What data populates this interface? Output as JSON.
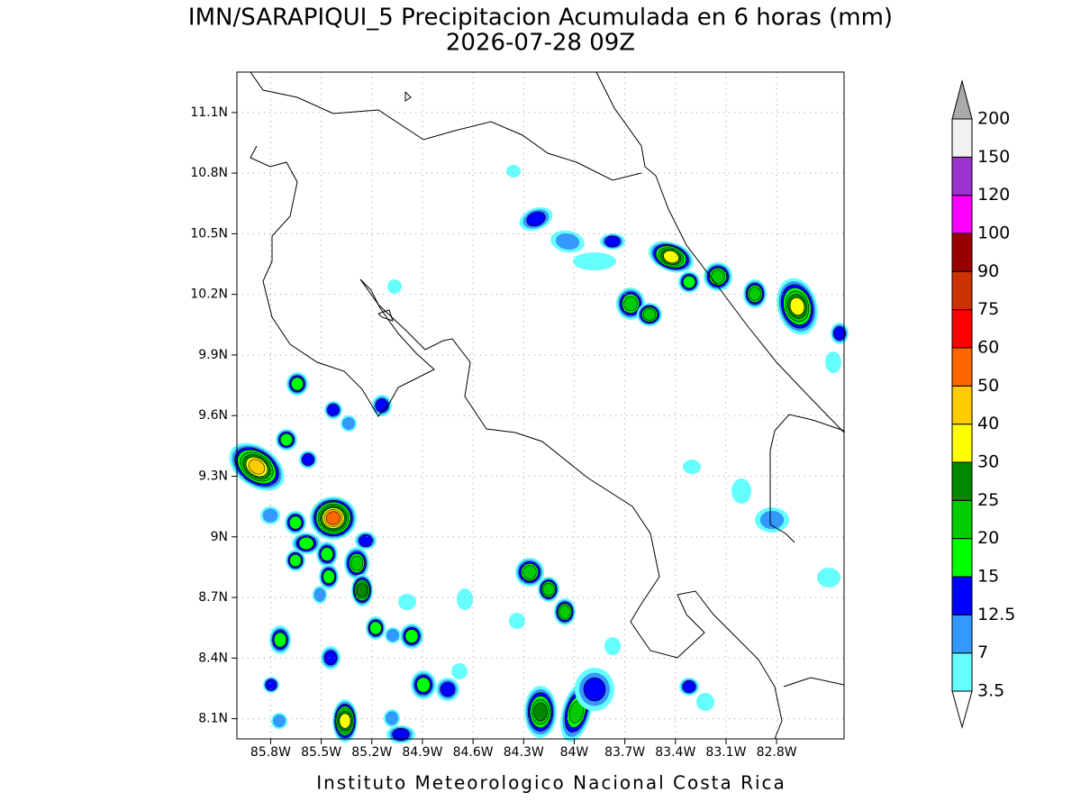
{
  "chart_data": {
    "type": "map",
    "title": "IMN/SARAPIQUI_5 Precipitacion Acumulada en 6 horas (mm)",
    "subtitle": "2026-07-28 09Z",
    "footer": "Instituto Meteorologico Nacional Costa Rica",
    "xlim": [
      -86.0,
      -82.4
    ],
    "ylim": [
      8.0,
      11.3
    ],
    "xticks": [
      {
        "value": -85.8,
        "label": "85.8W"
      },
      {
        "value": -85.5,
        "label": "85.5W"
      },
      {
        "value": -85.2,
        "label": "85.2W"
      },
      {
        "value": -84.9,
        "label": "84.9W"
      },
      {
        "value": -84.6,
        "label": "84.6W"
      },
      {
        "value": -84.3,
        "label": "84.3W"
      },
      {
        "value": -84.0,
        "label": "84W"
      },
      {
        "value": -83.7,
        "label": "83.7W"
      },
      {
        "value": -83.4,
        "label": "83.4W"
      },
      {
        "value": -83.1,
        "label": "83.1W"
      },
      {
        "value": -82.8,
        "label": "82.8W"
      }
    ],
    "yticks": [
      {
        "value": 8.1,
        "label": "8.1N"
      },
      {
        "value": 8.4,
        "label": "8.4N"
      },
      {
        "value": 8.7,
        "label": "8.7N"
      },
      {
        "value": 9.0,
        "label": "9N"
      },
      {
        "value": 9.3,
        "label": "9.3N"
      },
      {
        "value": 9.6,
        "label": "9.6N"
      },
      {
        "value": 9.9,
        "label": "9.9N"
      },
      {
        "value": 10.2,
        "label": "10.2N"
      },
      {
        "value": 10.5,
        "label": "10.5N"
      },
      {
        "value": 10.8,
        "label": "10.8N"
      },
      {
        "value": 11.1,
        "label": "11.1N"
      }
    ],
    "grid": true,
    "colorbar": {
      "levels": [
        3.5,
        7,
        12.5,
        15,
        20,
        25,
        30,
        40,
        50,
        60,
        75,
        90,
        100,
        120,
        150,
        200
      ],
      "colors": [
        "#ffffff",
        "#66ffff",
        "#3399ff",
        "#0000ff",
        "#00ff00",
        "#00cc00",
        "#008800",
        "#ffff00",
        "#ffcc00",
        "#ff6600",
        "#ff0000",
        "#cc3300",
        "#990000",
        "#ff00ff",
        "#9933cc",
        "#f2f2f2",
        "#aaaaaa"
      ]
    }
  }
}
